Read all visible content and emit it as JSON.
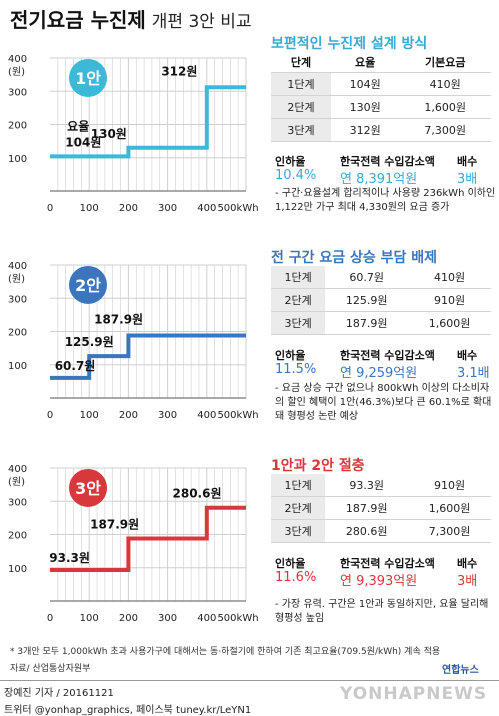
{
  "header": {
    "title": "전기요금 누진제",
    "subtitle": "개편 3안 비교"
  },
  "colors": {
    "plan1": "#3cb9d6",
    "plan2": "#3b75be",
    "plan3": "#d8373b",
    "grid": "#cfcfcf"
  },
  "axis": {
    "y_ticks": [
      "400",
      "300",
      "200",
      "100"
    ],
    "y_unit": "(원)",
    "x_ticks": [
      "0",
      "100",
      "200",
      "300",
      "400",
      "500kWh"
    ]
  },
  "chart_data": [
    {
      "type": "line",
      "badge": "1안",
      "x": [
        0,
        200,
        200,
        400,
        400,
        500
      ],
      "y": [
        104,
        104,
        130,
        130,
        312,
        312
      ],
      "xlim": [
        0,
        500
      ],
      "ylim": [
        0,
        400
      ],
      "labels": [
        "요율",
        "104원",
        "130원",
        "312원"
      ]
    },
    {
      "type": "line",
      "badge": "2안",
      "x": [
        0,
        100,
        100,
        200,
        200,
        500
      ],
      "y": [
        60.7,
        60.7,
        125.9,
        125.9,
        187.9,
        187.9
      ],
      "xlim": [
        0,
        500
      ],
      "ylim": [
        0,
        400
      ],
      "labels": [
        "60.7원",
        "125.9원",
        "187.9원"
      ]
    },
    {
      "type": "line",
      "badge": "3안",
      "x": [
        0,
        200,
        200,
        400,
        400,
        500
      ],
      "y": [
        93.3,
        93.3,
        187.9,
        187.9,
        280.6,
        280.6
      ],
      "xlim": [
        0,
        500
      ],
      "ylim": [
        0,
        400
      ],
      "labels": [
        "93.3원",
        "187.9원",
        "280.6원"
      ]
    }
  ],
  "plans": [
    {
      "heading": "보편적인 누진제 설계 방식",
      "columns": [
        "단계",
        "요율",
        "기본요금"
      ],
      "rows": [
        [
          "1단계",
          "104원",
          "410원"
        ],
        [
          "2단계",
          "130원",
          "1,600원"
        ],
        [
          "3단계",
          "312원",
          "7,300원"
        ]
      ],
      "kpi_labels": [
        "인하율",
        "한국전력 수입감소액",
        "배수"
      ],
      "kpi_values": [
        "10.4%",
        "연 8,391억원",
        "3배"
      ],
      "note": "- 구간·요율설계 합리적이나 사용량 236kWh 이하인 1,122만 가구 최대 4,330원의 요금 증가"
    },
    {
      "heading": "전 구간 요금 상승 부담 배제",
      "rows": [
        [
          "1단계",
          "60.7원",
          "410원"
        ],
        [
          "2단계",
          "125.9원",
          "910원"
        ],
        [
          "3단계",
          "187.9원",
          "1,600원"
        ]
      ],
      "kpi_labels": [
        "인하율",
        "한국전력 수입감소액",
        "배수"
      ],
      "kpi_values": [
        "11.5%",
        "연 9,259억원",
        "3.1배"
      ],
      "note": "- 요금 상승 구간 없으나 800kWh 이상의 다소비자의 할인 혜택이 1안(46.3%)보다 큰 60.1%로 확대돼 형평성 논란 예상"
    },
    {
      "heading": "1안과 2안 절충",
      "rows": [
        [
          "1단계",
          "93.3원",
          "910원"
        ],
        [
          "2단계",
          "187.9원",
          "1,600원"
        ],
        [
          "3단계",
          "280.6원",
          "7,300원"
        ]
      ],
      "kpi_labels": [
        "인하율",
        "한국전력 수입감소액",
        "배수"
      ],
      "kpi_values": [
        "11.6%",
        "연 9,393억원",
        "3배"
      ],
      "note": "- 가장 유력. 구간은 1안과 동일하지만, 요율 달리해 형평성 높임"
    }
  ],
  "footer": {
    "footnote": "* 3개안 모두 1,000kWh 초과 사용가구에 대해서는 동·하절기에 한하여 기존 최고요율(709.5원/kWh) 계속 적용",
    "source": "자료/ 산업통상자원부",
    "credit": "장예진 기자 / 20161121",
    "social": "트위터 @yonhap_graphics, 페이스북 tuney.kr/LeYN1",
    "logo_small": "연합뉴스",
    "watermark": "YONHAPNEWS"
  }
}
